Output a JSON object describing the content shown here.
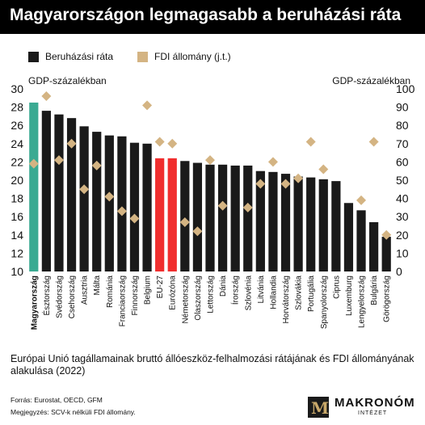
{
  "title": "Magyarországon legmagasabb a beruházási ráta",
  "legend": {
    "bar_label": "Beruházási ráta",
    "diamond_label": "FDI állomány (j.t.)"
  },
  "left_axis_unit": "GDP-százalékban",
  "right_axis_unit": "GDP-százalékban",
  "caption": "Európai Unió tagállamainak bruttó állóeszköz-felhalmozási rátájának és FDI állományának alakulása (2022)",
  "source": "Forrás: Eurostat, OECD, GFM",
  "note": "Megjegyzés: SCV-k nélküli FDI állomány.",
  "logo": {
    "name": "MAKRONÓM",
    "sub": "INTÉZET",
    "mark": "M"
  },
  "colors": {
    "bar_default": "#1a1a1a",
    "bar_hungary": "#3aaa92",
    "bar_eu": "#f02e2e",
    "diamond": "#d4b483"
  },
  "chart_data": {
    "type": "bar",
    "categories": [
      "Magyarország",
      "Észtország",
      "Svédország",
      "Csehország",
      "Ausztria",
      "Málta",
      "Románia",
      "Franciaország",
      "Finnország",
      "Belgium",
      "EU-27",
      "Eurózóna",
      "Németország",
      "Olaszország",
      "Lettország",
      "Dánia",
      "Írország",
      "Szlovénia",
      "Litvánia",
      "Hollandia",
      "Horvátország",
      "Szlovákia",
      "Portugália",
      "Spanyolország",
      "Ciprus",
      "Luxemburg",
      "Lengyelország",
      "Bulgária",
      "Görögország"
    ],
    "highlight": {
      "Magyarország": "bar_hungary",
      "EU-27": "bar_eu",
      "Eurózóna": "bar_eu"
    },
    "bold_categories": [
      "Magyarország"
    ],
    "series": [
      {
        "name": "Beruházási ráta",
        "kind": "bar",
        "axis": "left",
        "values": [
          28.5,
          27.6,
          27.2,
          26.8,
          25.9,
          25.3,
          24.9,
          24.8,
          24.1,
          24.0,
          22.4,
          22.4,
          22.1,
          21.9,
          21.7,
          21.7,
          21.6,
          21.6,
          21.0,
          20.9,
          20.7,
          20.4,
          20.3,
          20.1,
          19.9,
          17.5,
          16.7,
          15.4,
          13.8
        ]
      },
      {
        "name": "FDI állomány (j.t.)",
        "kind": "diamond",
        "axis": "right",
        "values": [
          59,
          96,
          61,
          70,
          45,
          58,
          41,
          33,
          29,
          91,
          71,
          70,
          27,
          22,
          61,
          36,
          null,
          35,
          48,
          60,
          48,
          51,
          71,
          56,
          null,
          null,
          39,
          71,
          20
        ]
      }
    ],
    "ylim_left": [
      10,
      30
    ],
    "yticks_left": [
      10,
      12,
      14,
      16,
      18,
      20,
      22,
      24,
      26,
      28,
      30
    ],
    "ylim_right": [
      0,
      100
    ],
    "yticks_right": [
      0,
      10,
      20,
      30,
      40,
      50,
      60,
      70,
      80,
      90,
      100
    ],
    "ylabel_left": "GDP-százalékban",
    "ylabel_right": "GDP-százalékban",
    "grid": false,
    "legend_position": "top-left"
  }
}
